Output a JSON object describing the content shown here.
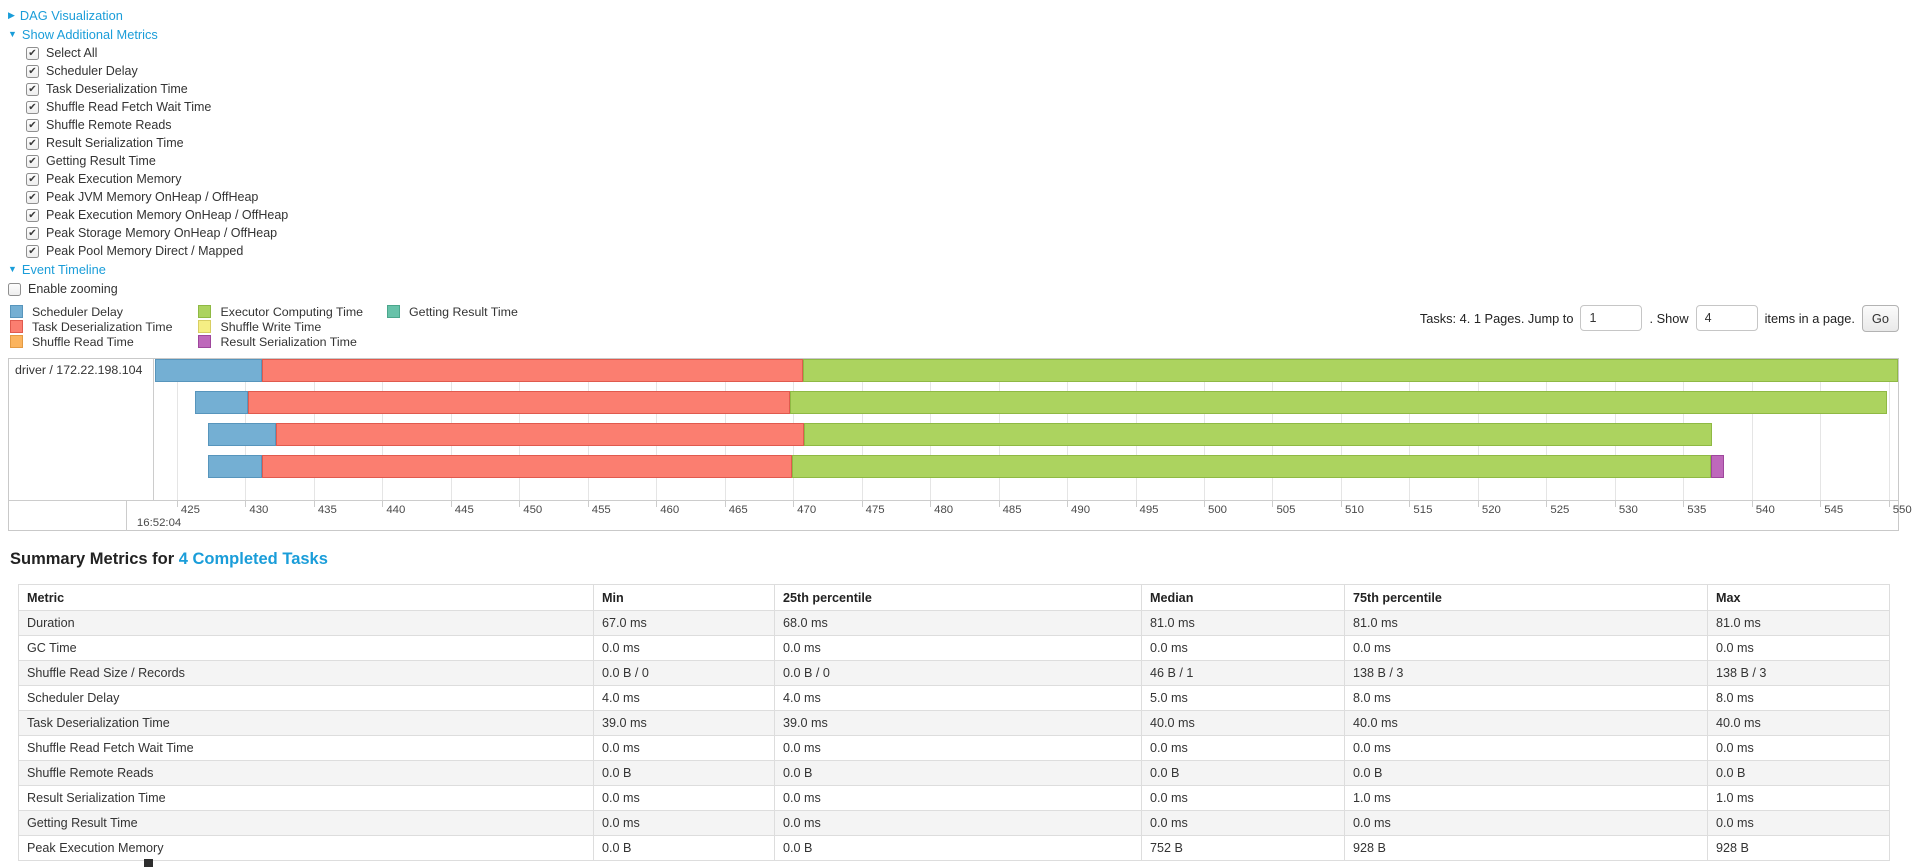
{
  "colors": {
    "link": "#1A9DD9",
    "table_stripe": "#F4F4F4",
    "table_border": "#DDDDDD",
    "metrics": {
      "scheduler-delay": {
        "fill": "#74AFD3",
        "border": "#5795BC"
      },
      "task-deserialization-time": {
        "fill": "#FB7E70",
        "border": "#E05A4E"
      },
      "shuffle-read-time": {
        "fill": "#FBB45E",
        "border": "#E39A43"
      },
      "executor-computing-time": {
        "fill": "#ACD35F",
        "border": "#8FB944"
      },
      "shuffle-write-time": {
        "fill": "#F5EE84",
        "border": "#D8CE62"
      },
      "result-serialization-time": {
        "fill": "#BE68BB",
        "border": "#9E479C"
      },
      "getting-result-time": {
        "fill": "#67C2A9",
        "border": "#4BA68C"
      }
    }
  },
  "controls": {
    "dag": {
      "arrow": "▶",
      "label": "DAG Visualization"
    },
    "metrics_toggle": {
      "arrow": "▼",
      "label": "Show Additional Metrics"
    },
    "metric_checkboxes": [
      "Select All",
      "Scheduler Delay",
      "Task Deserialization Time",
      "Shuffle Read Fetch Wait Time",
      "Shuffle Remote Reads",
      "Result Serialization Time",
      "Getting Result Time",
      "Peak Execution Memory",
      "Peak JVM Memory OnHeap / OffHeap",
      "Peak Execution Memory OnHeap / OffHeap",
      "Peak Storage Memory OnHeap / OffHeap",
      "Peak Pool Memory Direct / Mapped"
    ],
    "event_timeline": {
      "arrow": "▼",
      "label": "Event Timeline"
    },
    "enable_zooming": {
      "label": "Enable zooming",
      "checked": false
    }
  },
  "legend": {
    "columns": [
      [
        {
          "label": "Scheduler Delay",
          "metric": "scheduler-delay"
        },
        {
          "label": "Task Deserialization Time",
          "metric": "task-deserialization-time"
        },
        {
          "label": "Shuffle Read Time",
          "metric": "shuffle-read-time"
        }
      ],
      [
        {
          "label": "Executor Computing Time",
          "metric": "executor-computing-time"
        },
        {
          "label": "Shuffle Write Time",
          "metric": "shuffle-write-time"
        },
        {
          "label": "Result Serialization Time",
          "metric": "result-serialization-time"
        }
      ],
      [
        {
          "label": "Getting Result Time",
          "metric": "getting-result-time"
        }
      ]
    ]
  },
  "pagination": {
    "prefix": "Tasks: 4. 1 Pages. Jump to",
    "jump_value": "1",
    "mid": ". Show",
    "show_value": "4",
    "suffix": "items in a page.",
    "go_label": "Go"
  },
  "chart_data": {
    "type": "timeline",
    "title": "Event Timeline",
    "group_label": "driver / 172.22.198.104",
    "x_axis": {
      "domain": [
        423.4,
        550.75
      ],
      "tick_start": 425,
      "tick_end": 550,
      "tick_step": 5,
      "major_label": "16:52:04"
    },
    "tasks": [
      {
        "segments": [
          {
            "metric": "scheduler-delay",
            "from": 423.4,
            "to": 431.2
          },
          {
            "metric": "task-deserialization-time",
            "from": 431.2,
            "to": 470.7
          },
          {
            "metric": "executor-computing-time",
            "from": 470.7,
            "to": 550.7
          }
        ]
      },
      {
        "segments": [
          {
            "metric": "scheduler-delay",
            "from": 426.3,
            "to": 430.2
          },
          {
            "metric": "task-deserialization-time",
            "from": 430.2,
            "to": 469.8
          },
          {
            "metric": "executor-computing-time",
            "from": 469.8,
            "to": 549.9
          }
        ]
      },
      {
        "segments": [
          {
            "metric": "scheduler-delay",
            "from": 427.3,
            "to": 432.2
          },
          {
            "metric": "task-deserialization-time",
            "from": 432.2,
            "to": 470.8
          },
          {
            "metric": "executor-computing-time",
            "from": 470.8,
            "to": 537.1
          }
        ]
      },
      {
        "segments": [
          {
            "metric": "scheduler-delay",
            "from": 427.3,
            "to": 431.2
          },
          {
            "metric": "task-deserialization-time",
            "from": 431.2,
            "to": 469.9
          },
          {
            "metric": "executor-computing-time",
            "from": 469.9,
            "to": 537.0
          },
          {
            "metric": "result-serialization-time",
            "from": 537.0,
            "to": 538.0
          }
        ]
      }
    ]
  },
  "summary": {
    "title_prefix": "Summary Metrics for ",
    "title_link": "4 Completed Tasks",
    "table": {
      "headers": [
        "Metric",
        "Min",
        "25th percentile",
        "Median",
        "75th percentile",
        "Max"
      ],
      "rows": [
        [
          "Duration",
          "67.0 ms",
          "68.0 ms",
          "81.0 ms",
          "81.0 ms",
          "81.0 ms"
        ],
        [
          "GC Time",
          "0.0 ms",
          "0.0 ms",
          "0.0 ms",
          "0.0 ms",
          "0.0 ms"
        ],
        [
          "Shuffle Read Size / Records",
          "0.0 B / 0",
          "0.0 B / 0",
          "46 B / 1",
          "138 B / 3",
          "138 B / 3"
        ],
        [
          "Scheduler Delay",
          "4.0 ms",
          "4.0 ms",
          "5.0 ms",
          "8.0 ms",
          "8.0 ms"
        ],
        [
          "Task Deserialization Time",
          "39.0 ms",
          "39.0 ms",
          "40.0 ms",
          "40.0 ms",
          "40.0 ms"
        ],
        [
          "Shuffle Read Fetch Wait Time",
          "0.0 ms",
          "0.0 ms",
          "0.0 ms",
          "0.0 ms",
          "0.0 ms"
        ],
        [
          "Shuffle Remote Reads",
          "0.0 B",
          "0.0 B",
          "0.0 B",
          "0.0 B",
          "0.0 B"
        ],
        [
          "Result Serialization Time",
          "0.0 ms",
          "0.0 ms",
          "0.0 ms",
          "1.0 ms",
          "1.0 ms"
        ],
        [
          "Getting Result Time",
          "0.0 ms",
          "0.0 ms",
          "0.0 ms",
          "0.0 ms",
          "0.0 ms"
        ],
        [
          "Peak Execution Memory",
          "0.0 B",
          "0.0 B",
          "752 B",
          "928 B",
          "928 B"
        ]
      ]
    }
  }
}
